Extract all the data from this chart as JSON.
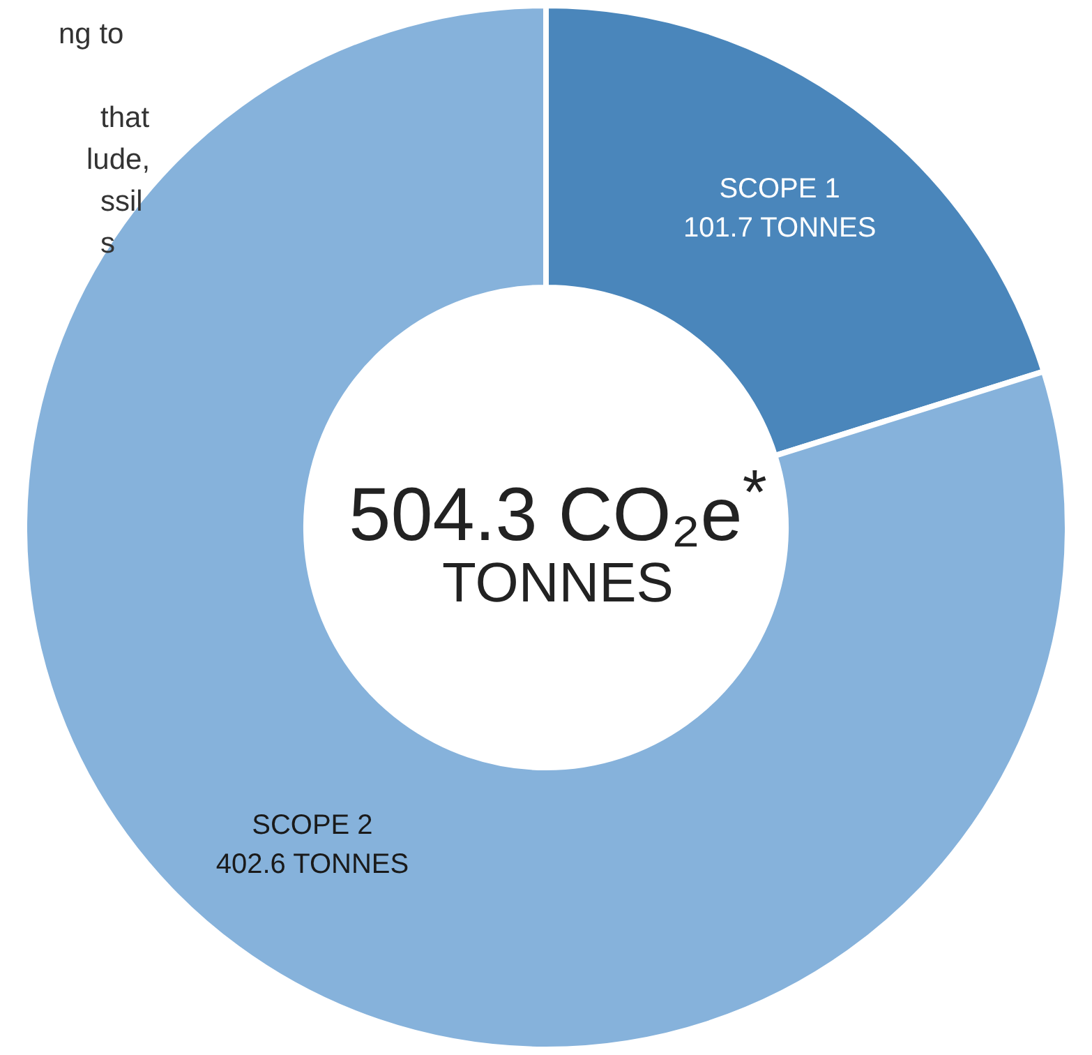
{
  "chart_data": {
    "type": "donut",
    "title": "504.3 CO₂e$^{*}$",
    "subtitle": "TONNES",
    "categories": [
      "SCOPE 1",
      "SCOPE 2"
    ],
    "values": [
      101.7,
      402.6
    ],
    "colors": [
      "#4a86bb",
      "#86b2db"
    ],
    "value_labels": [
      "101.7 TONNES",
      "402.6 TONNES"
    ],
    "annotations": [
      "ng to",
      "that",
      "lude,",
      "ssil",
      "s"
    ],
    "legend": false
  }
}
